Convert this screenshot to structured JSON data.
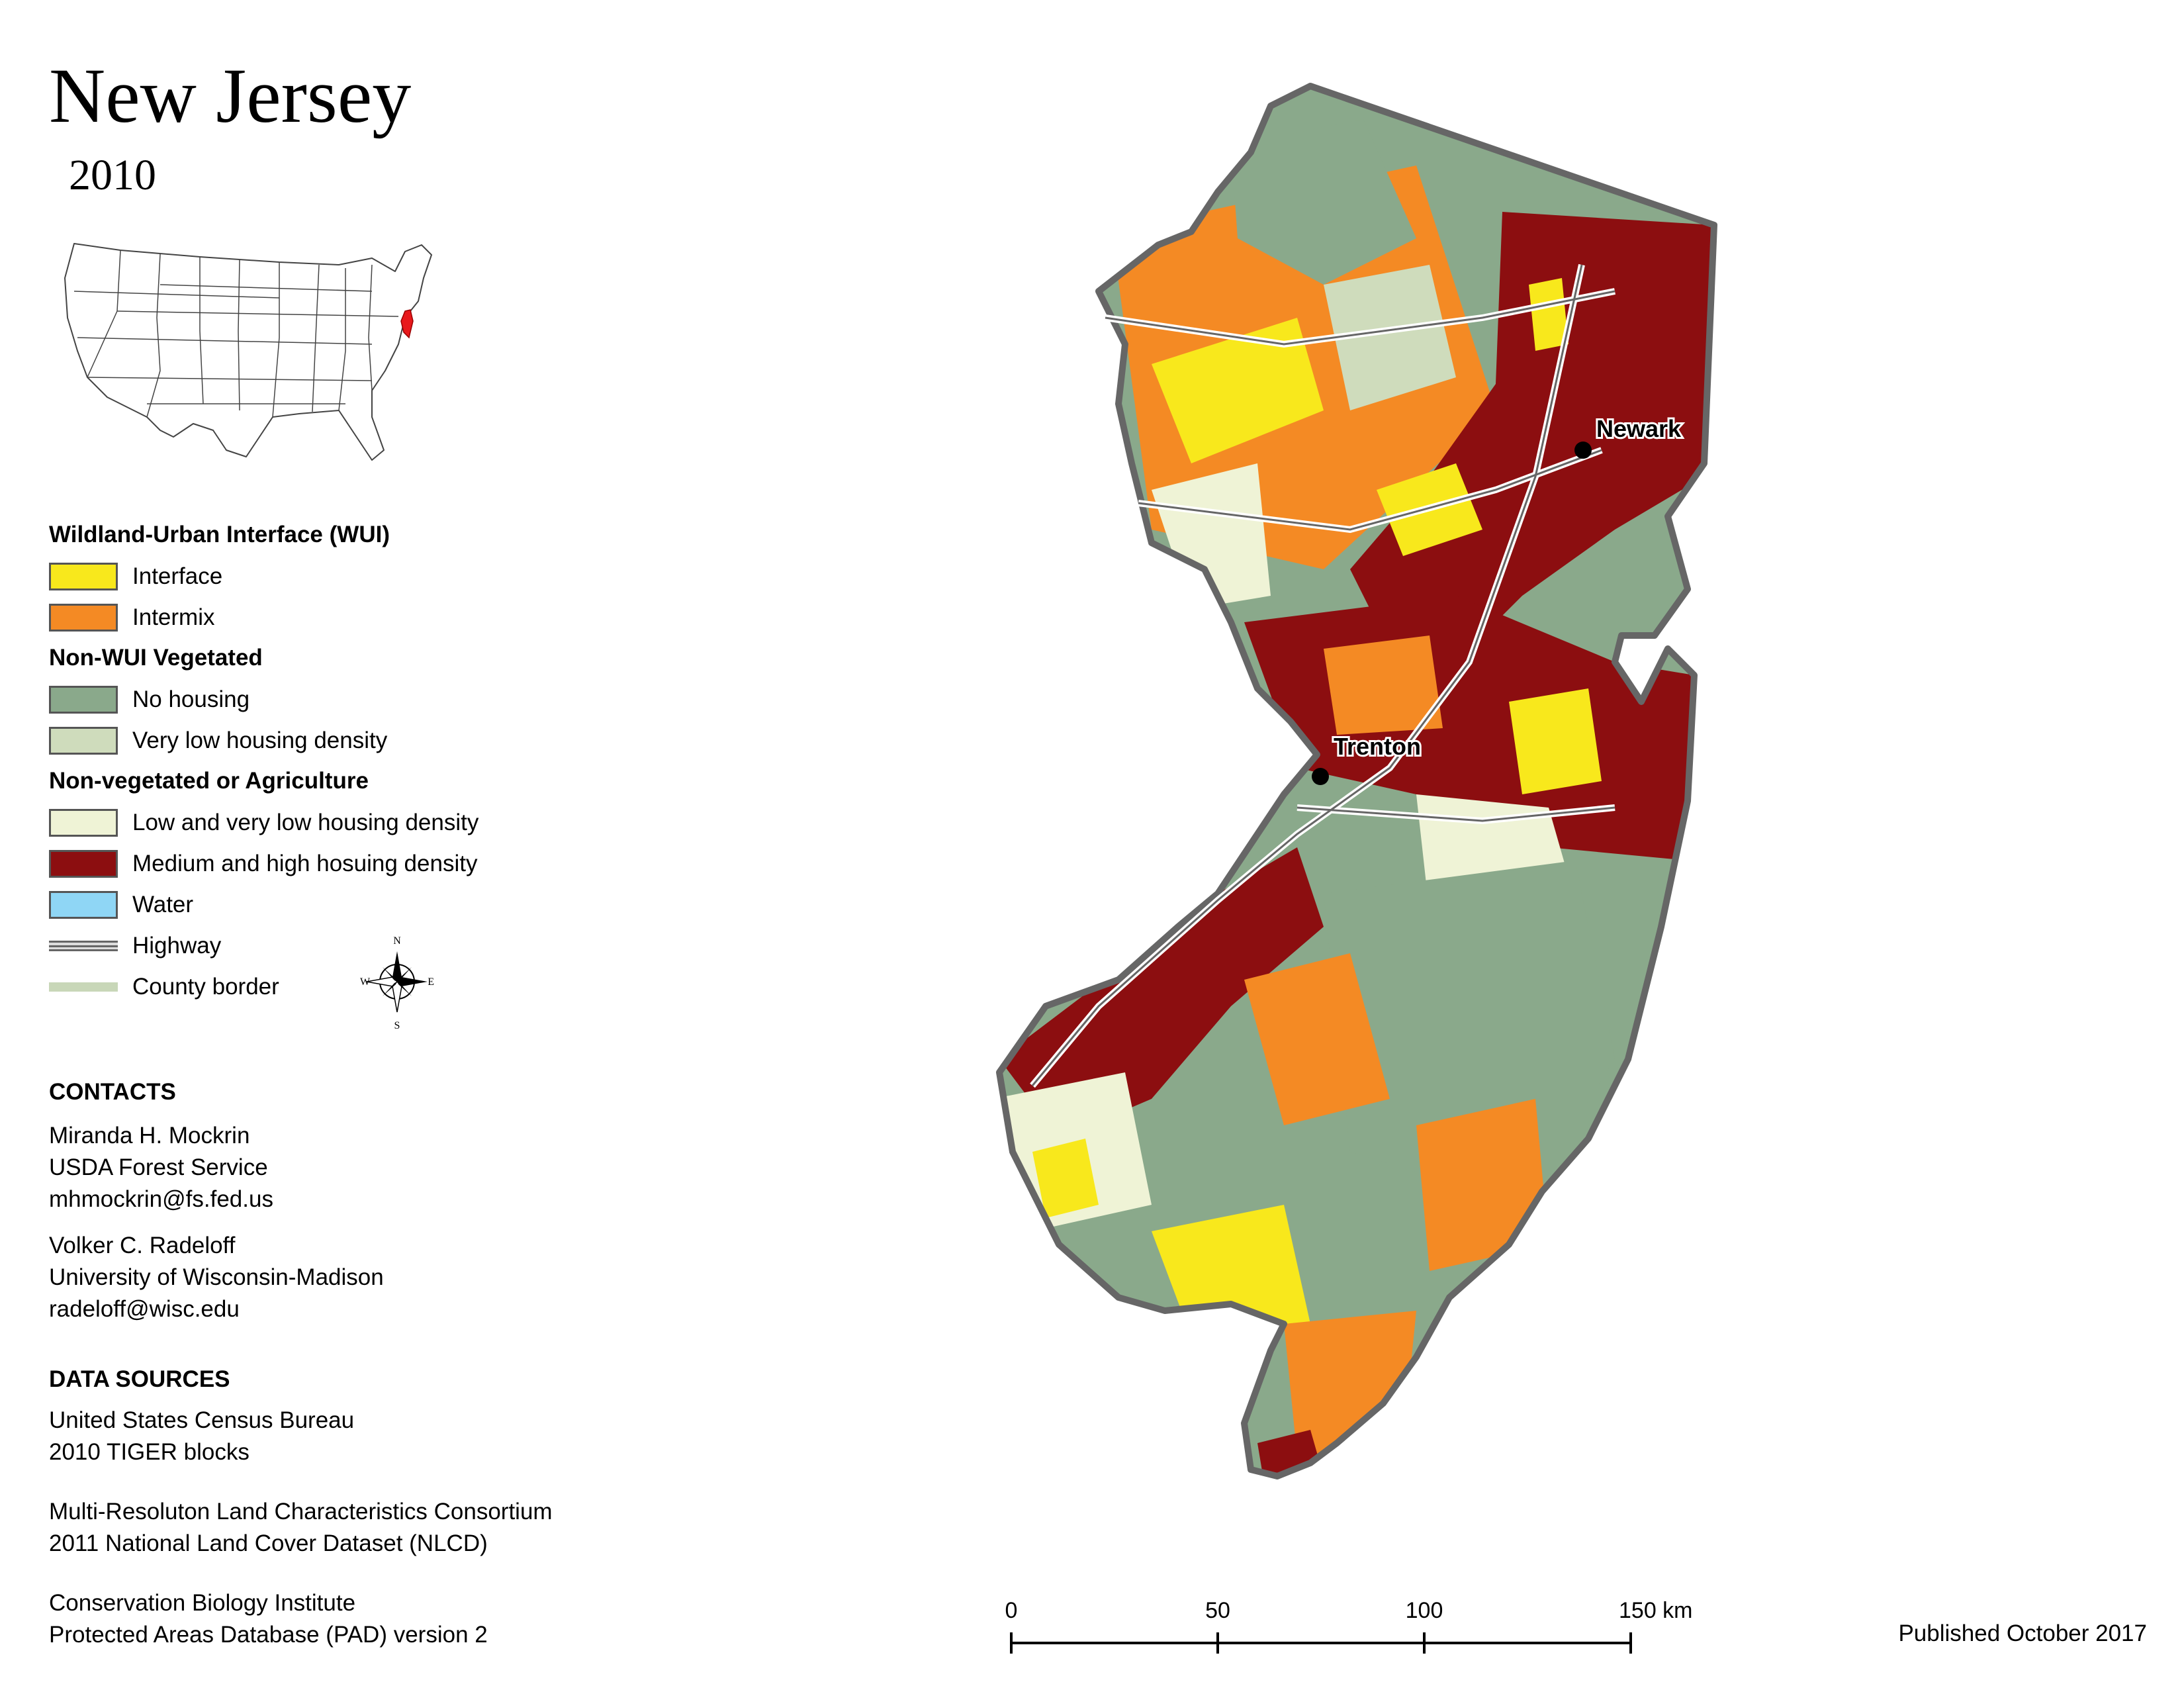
{
  "header": {
    "title": "New Jersey",
    "year": "2010"
  },
  "inset_map": {
    "highlight_state": "New Jersey",
    "highlight_color": "#e8191c"
  },
  "legend": {
    "sections": [
      {
        "heading": "Wildland-Urban Interface (WUI)",
        "items": [
          {
            "label": "Interface",
            "color": "#f8e81c"
          },
          {
            "label": "Intermix",
            "color": "#f48a24"
          }
        ]
      },
      {
        "heading": "Non-WUI Vegetated",
        "items": [
          {
            "label": "No housing",
            "color": "#8aa98b"
          },
          {
            "label": "Very low housing density",
            "color": "#cfdcbc"
          }
        ]
      },
      {
        "heading": "Non-vegetated or Agriculture",
        "items": [
          {
            "label": "Low and very low housing density",
            "color": "#eff3d6"
          },
          {
            "label": "Medium and high hosuing density",
            "color": "#8c0e10"
          },
          {
            "label": "Water",
            "color": "#8fd6f5"
          }
        ]
      }
    ],
    "lines": [
      {
        "label": "Highway",
        "icon": "highway-line"
      },
      {
        "label": "County border",
        "icon": "county-border-line"
      }
    ],
    "compass": {
      "n": "N",
      "s": "S",
      "e": "E",
      "w": "W"
    }
  },
  "contacts": {
    "heading": "CONTACTS",
    "people": [
      {
        "name": "Miranda H. Mockrin",
        "org": "USDA Forest Service",
        "email": "mhmockrin@fs.fed.us"
      },
      {
        "name": "Volker C. Radeloff",
        "org": "University of Wisconsin-Madison",
        "email": "radeloff@wisc.edu"
      }
    ]
  },
  "data_sources": {
    "heading": "DATA SOURCES",
    "entries": [
      {
        "line1": "United States Census Bureau",
        "line2": "2010 TIGER blocks"
      },
      {
        "line1": "Multi-Resoluton Land Characteristics Consortium",
        "line2": "2011 National Land Cover Dataset (NLCD)"
      },
      {
        "line1": "Conservation Biology Institute",
        "line2": "Protected Areas Database (PAD) version 2"
      }
    ]
  },
  "map": {
    "cities": [
      {
        "name": "Newark"
      },
      {
        "name": "Trenton"
      }
    ]
  },
  "scale_bar": {
    "ticks": [
      "0",
      "50",
      "100",
      "150 km"
    ]
  },
  "published": "Published October 2017"
}
